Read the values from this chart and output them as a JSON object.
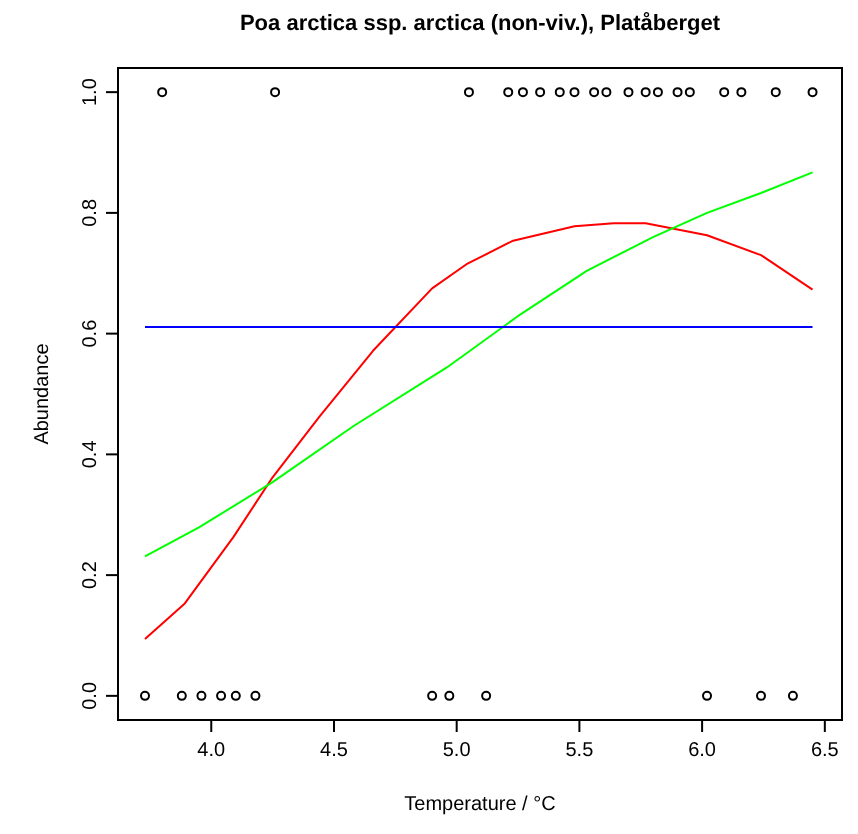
{
  "chart_data": {
    "type": "scatter",
    "title": "Poa arctica ssp. arctica (non-viv.), Platåberget",
    "xlabel": "Temperature / °C",
    "ylabel": "Abundance",
    "xlim": [
      3.62,
      6.57
    ],
    "ylim": [
      -0.04,
      1.04
    ],
    "xticks": [
      {
        "value": 4,
        "label": "4.0"
      },
      4.5,
      {
        "value": 5,
        "label": "5.0"
      },
      5.5,
      {
        "value": 6,
        "label": "6.0"
      },
      6.5
    ],
    "yticks": [
      {
        "value": 0,
        "label": "0.0"
      },
      0.2,
      0.4,
      0.6,
      0.8,
      {
        "value": 1,
        "label": "1.0"
      }
    ],
    "grid": false,
    "series": [
      {
        "marker": "circle",
        "color": "#000000",
        "x": [
          3.8,
          4.26,
          5.05,
          5.21,
          5.27,
          5.34,
          5.42,
          5.48,
          5.56,
          5.61,
          5.7,
          5.77,
          5.82,
          5.9,
          5.95,
          6.09,
          6.16,
          6.3,
          6.45,
          3.73,
          3.88,
          3.96,
          4.04,
          4.1,
          4.18,
          4.9,
          4.97,
          5.12,
          6.02,
          6.24,
          6.37
        ],
        "values": [
          1,
          1,
          1,
          1,
          1,
          1,
          1,
          1,
          1,
          1,
          1,
          1,
          1,
          1,
          1,
          1,
          1,
          1,
          1,
          0,
          0,
          0,
          0,
          0,
          0,
          0,
          0,
          0,
          0,
          0,
          0
        ]
      },
      {
        "type": "line",
        "color": "#ff0000",
        "x": [
          3.73,
          3.89,
          4.09,
          4.25,
          4.44,
          4.66,
          4.9,
          5.04,
          5.23,
          5.48,
          5.64,
          5.77,
          6.02,
          6.24,
          6.45
        ],
        "values": [
          0.094,
          0.152,
          0.263,
          0.362,
          0.462,
          0.572,
          0.675,
          0.715,
          0.754,
          0.778,
          0.783,
          0.783,
          0.763,
          0.73,
          0.673
        ]
      },
      {
        "type": "line",
        "color": "#00ff00",
        "x": [
          3.73,
          3.95,
          4.25,
          4.58,
          4.96,
          5.26,
          5.53,
          5.8,
          6.02,
          6.24,
          6.45
        ],
        "values": [
          0.231,
          0.279,
          0.354,
          0.447,
          0.544,
          0.632,
          0.704,
          0.76,
          0.8,
          0.833,
          0.867
        ]
      },
      {
        "type": "line",
        "color": "#0000ff",
        "x": [
          3.73,
          6.45
        ],
        "values": [
          0.611,
          0.611
        ]
      }
    ]
  }
}
